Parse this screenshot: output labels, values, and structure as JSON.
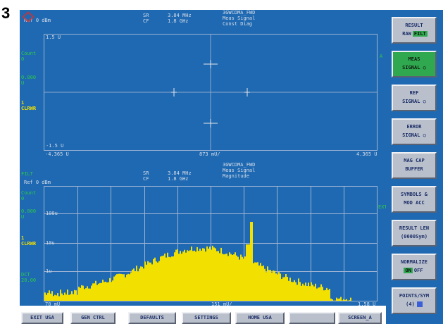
{
  "figure_number": "3",
  "upper": {
    "ref": "Ref 0 dBm",
    "sr_label": "SR",
    "sr_value": "3.84 MHz",
    "cf_label": "CF",
    "cf_value": "1.8 GHz",
    "standard": "3GWCDMA_FWD",
    "meas": "Meas Signal",
    "view": "Const Diag",
    "y_top": "1.5 U",
    "y_bottom": "-1.5 U",
    "x_left": "-4.365 U",
    "x_mid": "873 mU/",
    "x_right": "4.365 U",
    "side_labels": [
      "Count",
      "0",
      "0.000",
      "U"
    ],
    "side_marker": "1",
    "side_mode": "CLRWR",
    "right_marker": "A"
  },
  "lower": {
    "ref": "Ref 0 dBm",
    "sr_label": "SR",
    "sr_value": "3.84 MHz",
    "cf_label": "CF",
    "cf_value": "1.8 GHz",
    "standard": "3GWCDMA_FWD",
    "meas": "Meas Signal",
    "view": "Magnitude",
    "trace_tag": "FILT",
    "y_labels": [
      "100u",
      "10u",
      "1u"
    ],
    "x_left": "70 mU",
    "x_mid": "151 mU/",
    "x_right": "1.58 U",
    "side_labels": [
      "Count",
      "0",
      "0.000",
      "U"
    ],
    "side_marker": "1",
    "side_mode": "CLRWR",
    "side_extra": [
      "DCT",
      "20.00"
    ],
    "right_marker": "EXT"
  },
  "softkeys": [
    {
      "line1": "RESULT",
      "line2a": "RAW",
      "line2b": "FILT",
      "active": false,
      "toggle": true
    },
    {
      "line1": "MEAS",
      "line2": "SIGNAL ○",
      "active": true
    },
    {
      "line1": "REF",
      "line2": "SIGNAL ○",
      "active": false
    },
    {
      "line1": "ERROR",
      "line2": "SIGNAL ○",
      "active": false
    },
    {
      "line1": "MAG CAP",
      "line2": "BUFFER",
      "active": false
    },
    {
      "line1": "SYMBOLS &",
      "line2": "MOD ACC",
      "active": false
    },
    {
      "line1": "RESULT LEN",
      "line2": "(0000Sym)",
      "active": false
    },
    {
      "line1": "NORMALIZE",
      "line2a": "ON",
      "line2b": "OFF",
      "active": false,
      "toggle": true
    },
    {
      "line1": "POINTS/SYM",
      "line2": "(4)",
      "active": false
    }
  ],
  "hotkeys": [
    "EXIT USA",
    "GEN CTRL",
    "DEFAULTS",
    "SETTINGS",
    "HOME USA",
    "",
    "SCREEN_A"
  ],
  "colors": {
    "screen_bg": "#1e69b2",
    "trace": "#f2e000",
    "grid": "#9fb4d4",
    "softkey_bg": "#b9c0cc",
    "active_green": "#2fa84f"
  }
}
